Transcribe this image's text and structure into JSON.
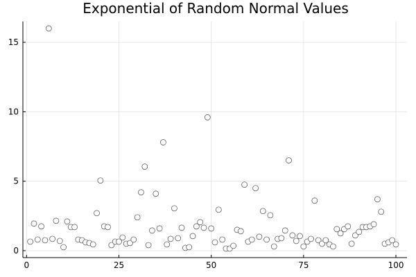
{
  "chart_data": {
    "type": "scatter",
    "title": "Exponential of Random Normal Values",
    "xlabel": "",
    "ylabel": "",
    "xlim": [
      -1,
      103
    ],
    "ylim": [
      -0.5,
      16.5
    ],
    "xticks": [
      0,
      25,
      50,
      75,
      100
    ],
    "yticks": [
      0,
      5,
      10,
      15
    ],
    "xtick_labels": [
      "0",
      "25",
      "50",
      "75",
      "100"
    ],
    "ytick_labels": [
      "0",
      "5",
      "10",
      "15"
    ],
    "grid": true,
    "legend": "none",
    "marker_color": "#ffffff",
    "marker_edge_color": "#4a4a4a",
    "series": [
      {
        "x": [
          1,
          2,
          3,
          4,
          5,
          6,
          7,
          8,
          9,
          10,
          11,
          12,
          13,
          14,
          15,
          16,
          17,
          18,
          19,
          20,
          21,
          22,
          23,
          24,
          25,
          26,
          27,
          28,
          29,
          30,
          31,
          32,
          33,
          34,
          35,
          36,
          37,
          38,
          39,
          40,
          41,
          42,
          43,
          44,
          45,
          46,
          47,
          48,
          49,
          50,
          51,
          52,
          53,
          54,
          55,
          56,
          57,
          58,
          59,
          60,
          61,
          62,
          63,
          64,
          65,
          66,
          67,
          68,
          69,
          70,
          71,
          72,
          73,
          74,
          75,
          76,
          77,
          78,
          79,
          80,
          81,
          82,
          83,
          84,
          85,
          86,
          87,
          88,
          89,
          90,
          91,
          92,
          93,
          94,
          95,
          96,
          97,
          98,
          99,
          100
        ],
        "y": [
          0.65,
          1.95,
          0.8,
          1.75,
          0.75,
          16.0,
          0.85,
          2.15,
          0.7,
          0.25,
          2.1,
          1.7,
          1.7,
          0.8,
          0.75,
          0.6,
          0.55,
          0.45,
          2.7,
          5.05,
          1.75,
          1.7,
          0.4,
          0.65,
          0.65,
          0.95,
          0.5,
          0.55,
          0.8,
          2.4,
          4.2,
          6.05,
          0.4,
          1.45,
          4.1,
          1.6,
          7.8,
          0.45,
          0.85,
          3.05,
          0.9,
          1.65,
          0.2,
          0.25,
          1.05,
          1.75,
          2.05,
          1.65,
          9.6,
          1.6,
          0.6,
          2.95,
          0.8,
          0.15,
          0.15,
          0.35,
          1.5,
          1.4,
          4.75,
          0.65,
          0.8,
          4.5,
          1.0,
          2.85,
          0.8,
          2.55,
          0.3,
          0.85,
          0.9,
          1.45,
          6.5,
          1.1,
          0.7,
          1.05,
          0.3,
          0.65,
          0.85,
          3.6,
          0.75,
          0.5,
          0.75,
          0.45,
          0.3,
          1.55,
          1.25,
          1.55,
          1.75,
          0.5,
          1.1,
          1.35,
          1.7,
          1.7,
          1.75,
          1.9,
          3.7,
          2.8,
          0.5,
          0.6,
          0.75,
          0.45
        ]
      }
    ]
  }
}
